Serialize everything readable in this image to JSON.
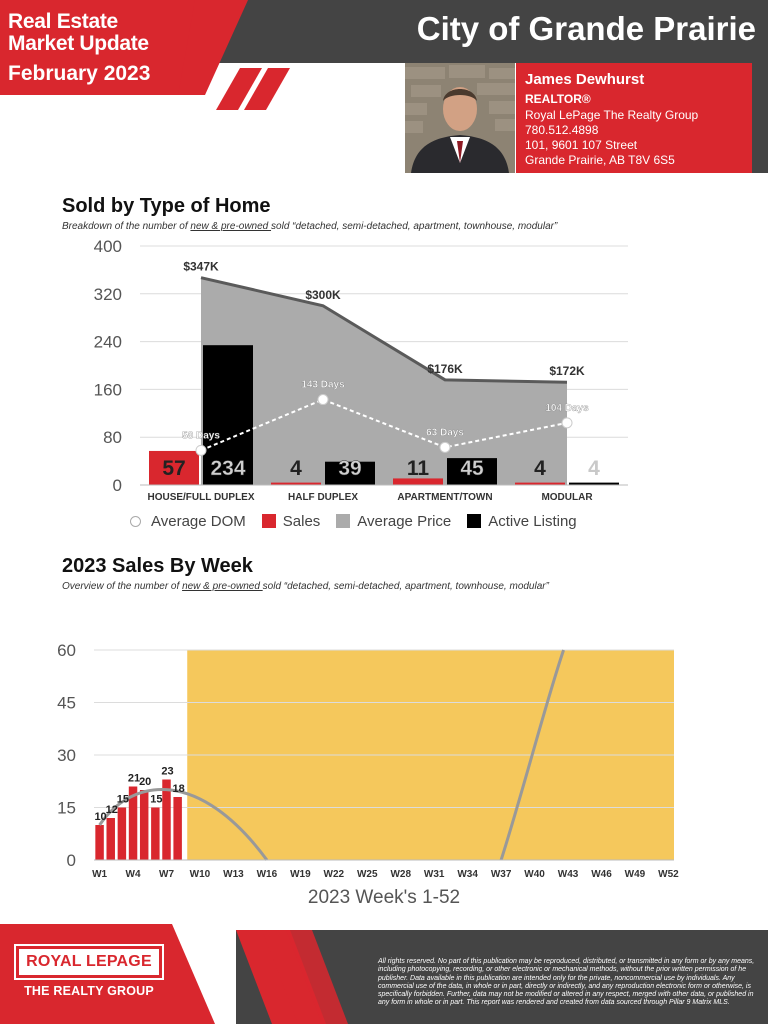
{
  "header": {
    "line1": "Real Estate",
    "line2": "Market Update",
    "line3": "February 2023",
    "city": "City of Grande Prairie"
  },
  "agent": {
    "name": "James Dewhurst",
    "title": "REALTOR®",
    "brokerage": "Royal LePage The Realty Group",
    "phone": "780.512.4898",
    "address1": "101, 9601 107 Street",
    "address2": "Grande Prairie, AB T8V 6S5"
  },
  "section1": {
    "title": "Sold by Type of Home",
    "subtitle_pre": "Breakdown of the number of ",
    "subtitle_underlined": "new & pre-owned ",
    "subtitle_post": "sold “detached, semi-detached, apartment, townhouse, modular”"
  },
  "section2": {
    "title": "2023 Sales By Week",
    "subtitle_pre": "Overview of the number of ",
    "subtitle_underlined": "new & pre-owned ",
    "subtitle_post": "sold “detached, semi-detached, apartment, townhouse, modular”"
  },
  "colors": {
    "red": "#d9272e",
    "dark": "#444444",
    "gray_area": "#ababab",
    "black": "#000000",
    "gold": "#f5c85c",
    "curve": "#999999"
  },
  "legend": {
    "dom": "Average DOM",
    "sales": "Sales",
    "price": "Average Price",
    "active": "Active Listing"
  },
  "chart_data": [
    {
      "type": "bar",
      "title": "Sold by Type of Home",
      "categories": [
        "HOUSE/FULL DUPLEX",
        "HALF DUPLEX",
        "APARTMENT/TOWN",
        "MODULAR"
      ],
      "ylim": [
        0,
        400
      ],
      "yticks": [
        0,
        80,
        160,
        240,
        320,
        400
      ],
      "series": [
        {
          "name": "Sales",
          "kind": "bar",
          "values": [
            57,
            4,
            11,
            4
          ],
          "labels": [
            "57",
            "4",
            "11",
            "4"
          ]
        },
        {
          "name": "Active Listing",
          "kind": "bar",
          "values": [
            234,
            39,
            45,
            4
          ],
          "labels": [
            "234",
            "39",
            "45",
            "4"
          ]
        },
        {
          "name": "Average Price",
          "kind": "area",
          "values": [
            347,
            300,
            176,
            172
          ],
          "labels": [
            "$347K",
            "$300K",
            "$176K",
            "$172K"
          ]
        },
        {
          "name": "Average DOM",
          "kind": "line",
          "values": [
            58,
            143,
            63,
            104
          ],
          "labels": [
            "58 Days",
            "143 Days",
            "63 Days",
            "104 Days"
          ]
        }
      ],
      "grid": true,
      "legend": "bottom"
    },
    {
      "type": "bar",
      "title": "2023 Sales By Week",
      "xlabel": "2023 Week's 1-52",
      "ylim": [
        0,
        60
      ],
      "yticks": [
        0,
        15,
        30,
        45,
        60
      ],
      "xtick_labels": [
        "W1",
        "W4",
        "W7",
        "W10",
        "W13",
        "W16",
        "W19",
        "W22",
        "W25",
        "W28",
        "W31",
        "W34",
        "W37",
        "W40",
        "W43",
        "W46",
        "W49",
        "W52"
      ],
      "week_count": 52,
      "series": [
        {
          "name": "Sales",
          "kind": "bar",
          "weeks": [
            1,
            2,
            3,
            4,
            5,
            6,
            7,
            8
          ],
          "values": [
            10,
            12,
            15,
            21,
            20,
            15,
            23,
            18
          ]
        }
      ],
      "shaded_weeks": [
        9,
        52
      ],
      "grid": true
    }
  ],
  "footer": {
    "brand": "ROYAL LEPAGE",
    "subbrand": "THE REALTY GROUP",
    "disclaimer": "All rights reserved. No part of this publication may be reproduced, distributed, or transmitted in any form or by any means, including photocopying, recording, or other electronic or mechanical methods, without the prior written permission of he publisher. Data available in this publication are intended only for the private, noncommercial use by individuals. Any commercial use of the data, in whole or in part, directly or indirectly, and any reproduction electronic form or otherwise, is specifically forbidden. Further, data may not be modified or altered in any respect, merged with other data, or published in any form in whole or in part. This report was rendered and created from data sourced through Pillar 9 Matrix MLS."
  }
}
